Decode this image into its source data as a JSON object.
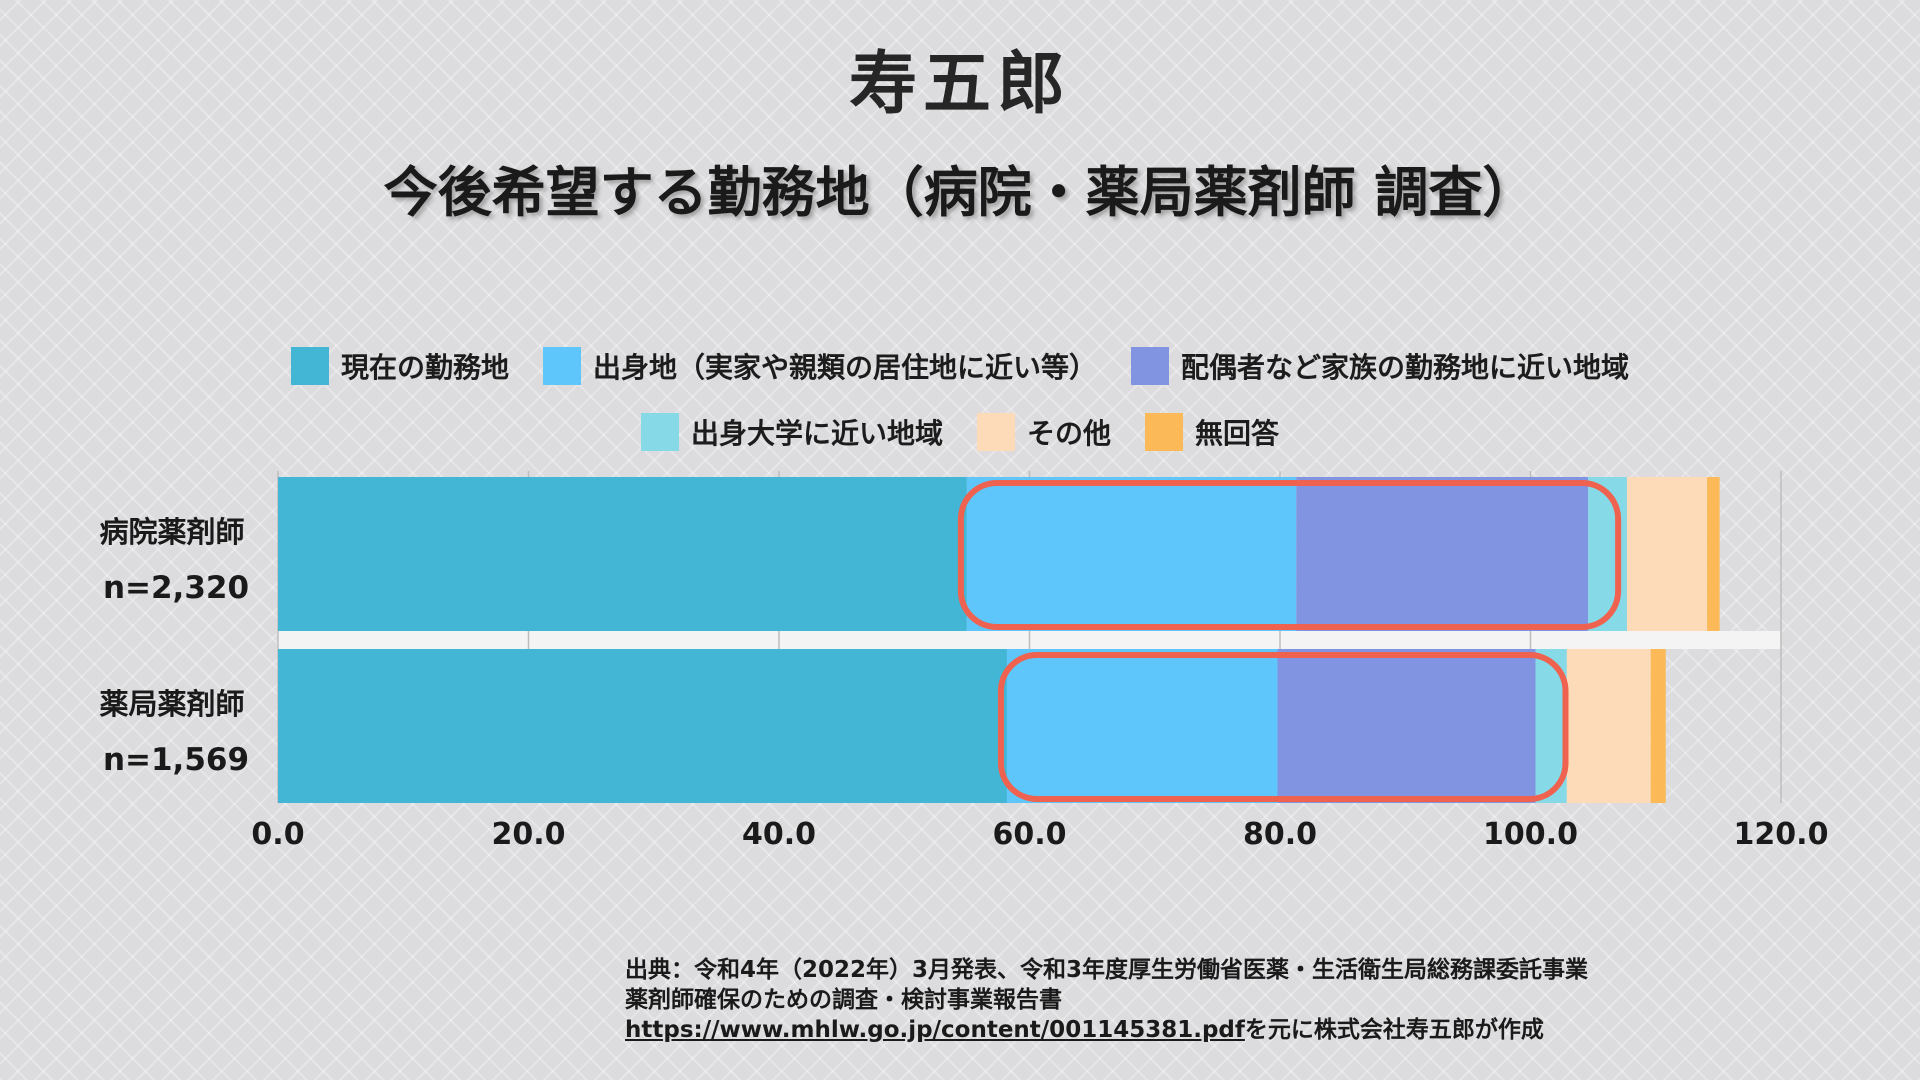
{
  "logo": {
    "text": "寿五郎"
  },
  "title": "今後希望する勤務地（病院・薬局薬剤師 調査）",
  "chart_data": {
    "type": "bar",
    "orientation": "horizontal",
    "stacked": true,
    "categories": [
      "病院薬剤師",
      "薬局薬剤師"
    ],
    "category_sublabels": [
      "n=2,320",
      "n=1,569"
    ],
    "series": [
      {
        "name": "現在の勤務地",
        "color": "#43b6d6",
        "values": [
          55.0,
          58.2
        ]
      },
      {
        "name": "出身地（実家や親類の居住地に近い等）",
        "color": "#5ec6fb",
        "values": [
          26.3,
          21.6
        ]
      },
      {
        "name": "配偶者など家族の勤務地に近い地域",
        "color": "#8094e1",
        "values": [
          23.3,
          20.6
        ]
      },
      {
        "name": "出身大学に近い地域",
        "color": "#86d9e6",
        "values": [
          3.1,
          2.5
        ]
      },
      {
        "name": "その他",
        "color": "#fedbb8",
        "values": [
          6.4,
          6.7
        ]
      },
      {
        "name": "無回答",
        "color": "#fbb957",
        "values": [
          1.0,
          1.2
        ]
      }
    ],
    "xlim": [
      0,
      120
    ],
    "x_ticks": [
      "0.0",
      "20.0",
      "40.0",
      "60.0",
      "80.0",
      "100.0",
      "120.0"
    ],
    "highlight": {
      "series": [
        "出身地（実家や親類の居住地に近い等）",
        "配偶者など家族の勤務地に近い地域"
      ],
      "color": "#f06250"
    }
  },
  "source": {
    "line1": "出典：令和4年（2022年）3月発表、令和3年度厚生労働省医薬・生活衛生局総務課委託事業",
    "line2": "薬剤師確保のための調査・検討事業報告書",
    "url": "https://www.mhlw.go.jp/content/001145381.pdf",
    "suffix": "を元に株式会社寿五郎が作成"
  }
}
